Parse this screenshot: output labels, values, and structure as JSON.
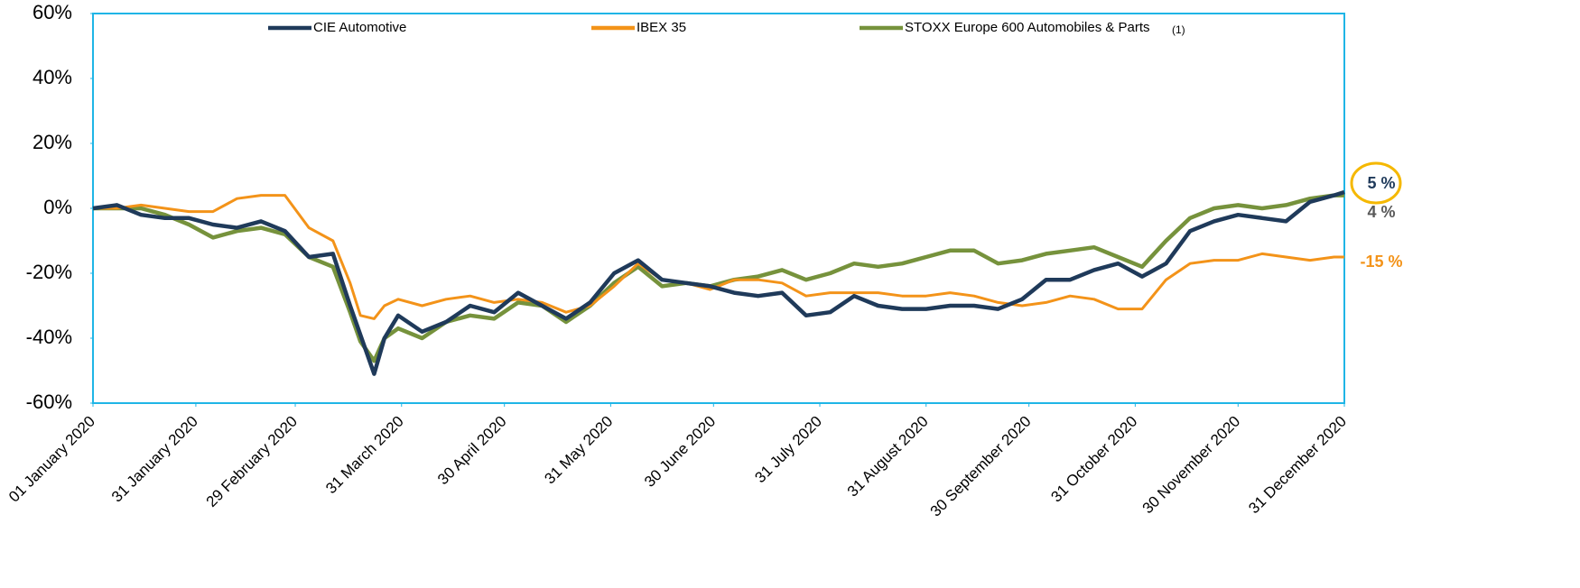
{
  "chart_data": {
    "type": "line",
    "x": [
      "2020-01-01",
      "2020-01-08",
      "2020-01-15",
      "2020-01-22",
      "2020-01-29",
      "2020-02-05",
      "2020-02-12",
      "2020-02-19",
      "2020-02-26",
      "2020-03-04",
      "2020-03-11",
      "2020-03-16",
      "2020-03-19",
      "2020-03-23",
      "2020-03-26",
      "2020-03-30",
      "2020-04-06",
      "2020-04-13",
      "2020-04-20",
      "2020-04-27",
      "2020-05-04",
      "2020-05-11",
      "2020-05-18",
      "2020-05-25",
      "2020-06-01",
      "2020-06-08",
      "2020-06-15",
      "2020-06-22",
      "2020-06-29",
      "2020-07-06",
      "2020-07-13",
      "2020-07-20",
      "2020-07-27",
      "2020-08-03",
      "2020-08-10",
      "2020-08-17",
      "2020-08-24",
      "2020-08-31",
      "2020-09-07",
      "2020-09-14",
      "2020-09-21",
      "2020-09-28",
      "2020-10-05",
      "2020-10-12",
      "2020-10-19",
      "2020-10-26",
      "2020-11-02",
      "2020-11-09",
      "2020-11-16",
      "2020-11-23",
      "2020-11-30",
      "2020-12-07",
      "2020-12-14",
      "2020-12-21",
      "2020-12-28",
      "2020-12-31"
    ],
    "series": [
      {
        "name": "CIE Automotive",
        "color": "#1f3a5a",
        "values": [
          0,
          1,
          -2,
          -3,
          -3,
          -5,
          -6,
          -4,
          -7,
          -15,
          -14,
          -30,
          -39,
          -51,
          -40,
          -33,
          -38,
          -35,
          -30,
          -32,
          -26,
          -30,
          -34,
          -29,
          -20,
          -16,
          -22,
          -23,
          -24,
          -26,
          -27,
          -26,
          -33,
          -32,
          -27,
          -30,
          -31,
          -31,
          -30,
          -30,
          -31,
          -28,
          -22,
          -22,
          -19,
          -17,
          -21,
          -17,
          -7,
          -4,
          -2,
          -3,
          -4,
          2,
          4,
          5
        ]
      },
      {
        "name": "IBEX 35",
        "color": "#f39319",
        "values": [
          0,
          0,
          1,
          0,
          -1,
          -1,
          3,
          4,
          4,
          -6,
          -10,
          -23,
          -33,
          -34,
          -30,
          -28,
          -30,
          -28,
          -27,
          -29,
          -28,
          -29,
          -32,
          -30,
          -24,
          -17,
          -22,
          -23,
          -25,
          -22,
          -22,
          -23,
          -27,
          -26,
          -26,
          -26,
          -27,
          -27,
          -26,
          -27,
          -29,
          -30,
          -29,
          -27,
          -28,
          -31,
          -31,
          -22,
          -17,
          -16,
          -16,
          -14,
          -15,
          -16,
          -15,
          -15
        ]
      },
      {
        "name": "STOXX Europe 600 Automobiles & Parts",
        "color": "#76923c",
        "values": [
          0,
          0,
          0,
          -2,
          -5,
          -9,
          -7,
          -6,
          -8,
          -15,
          -18,
          -32,
          -41,
          -47,
          -40,
          -37,
          -40,
          -35,
          -33,
          -34,
          -29,
          -30,
          -35,
          -30,
          -23,
          -18,
          -24,
          -23,
          -24,
          -22,
          -21,
          -19,
          -22,
          -20,
          -17,
          -18,
          -17,
          -15,
          -13,
          -13,
          -17,
          -16,
          -14,
          -13,
          -12,
          -15,
          -18,
          -10,
          -3,
          0,
          1,
          0,
          1,
          3,
          4,
          4
        ]
      }
    ],
    "legend_note": "(1)",
    "end_labels": [
      {
        "text": "5 %",
        "color": "#1f3a5a"
      },
      {
        "text": "4 %",
        "color": "#595959"
      },
      {
        "text": "-15 %",
        "color": "#f39319"
      }
    ],
    "xlim": [
      "2020-01-01",
      "2020-12-31"
    ],
    "xticks": [
      {
        "value": "2020-01-01",
        "label": "01 January 2020"
      },
      {
        "value": "2020-01-31",
        "label": "31 January 2020"
      },
      {
        "value": "2020-02-29",
        "label": "29 February 2020"
      },
      {
        "value": "2020-03-31",
        "label": "31 March 2020"
      },
      {
        "value": "2020-04-30",
        "label": "30 April 2020"
      },
      {
        "value": "2020-05-31",
        "label": "31 May 2020"
      },
      {
        "value": "2020-06-30",
        "label": "30 June 2020"
      },
      {
        "value": "2020-07-31",
        "label": "31 July 2020"
      },
      {
        "value": "2020-08-31",
        "label": "31 August 2020"
      },
      {
        "value": "2020-09-30",
        "label": "30 September 2020"
      },
      {
        "value": "2020-10-31",
        "label": "31 October 2020"
      },
      {
        "value": "2020-11-30",
        "label": "30 November 2020"
      },
      {
        "value": "2020-12-31",
        "label": "31 December 2020"
      }
    ],
    "ylim": [
      -60,
      60
    ],
    "yticks": [
      {
        "value": 60,
        "label": "60%"
      },
      {
        "value": 40,
        "label": "40%"
      },
      {
        "value": 20,
        "label": "20%"
      },
      {
        "value": 0,
        "label": "0%"
      },
      {
        "value": -20,
        "label": "-20%"
      },
      {
        "value": -40,
        "label": "-40%"
      },
      {
        "value": -60,
        "label": "-60%"
      }
    ],
    "frame_color": "#1fb5e6",
    "highlight_color": "#f5b800"
  }
}
